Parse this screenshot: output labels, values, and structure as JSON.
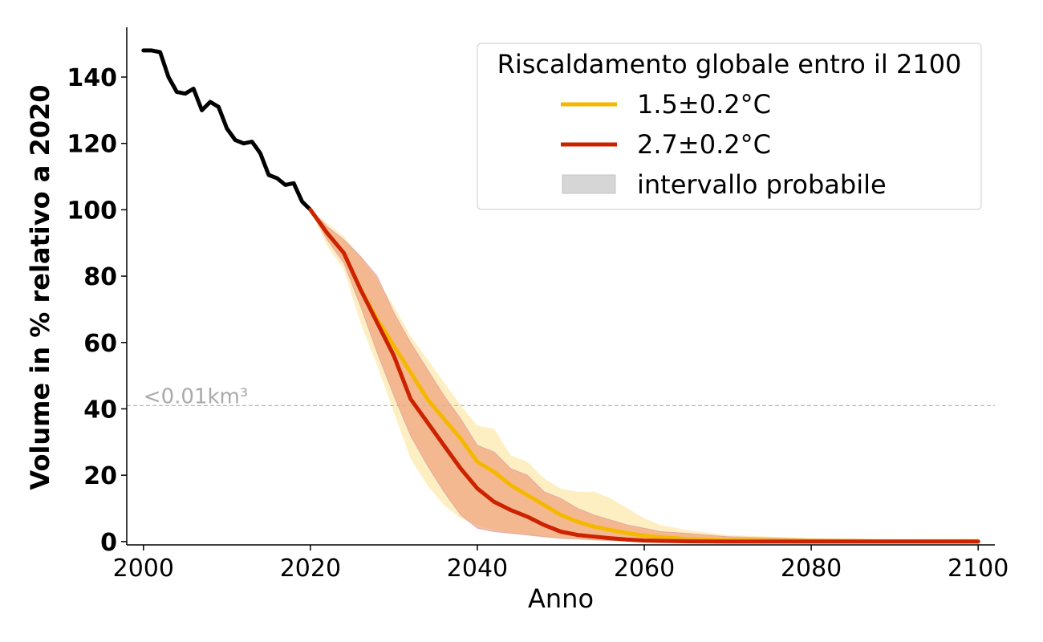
{
  "chart_data": {
    "type": "line",
    "xlabel": "Anno",
    "ylabel": "Volume in % relativo a 2020",
    "xlim": [
      1998,
      2102
    ],
    "ylim": [
      -1,
      155
    ],
    "xticks": [
      2000,
      2020,
      2040,
      2060,
      2080,
      2100
    ],
    "xtick_labels": [
      "2000",
      "2020",
      "2040",
      "2060",
      "2080",
      "2100"
    ],
    "yticks": [
      0,
      20,
      40,
      60,
      80,
      100,
      120,
      140
    ],
    "ytick_labels": [
      "0",
      "20",
      "40",
      "60",
      "80",
      "100",
      "120",
      "140"
    ],
    "grid": false,
    "legend": {
      "title": "Riscaldamento globale entro il 2100",
      "placement": "top-right",
      "entries": [
        "1.5±0.2°C",
        "2.7±0.2°C",
        "intervallo probabile"
      ]
    },
    "reference_line": {
      "y": 41,
      "label": "<0.01km³",
      "color": "#bbbbbb"
    },
    "observed": {
      "color": "#000000",
      "x": [
        2000,
        2001,
        2002,
        2003,
        2004,
        2005,
        2006,
        2007,
        2008,
        2009,
        2010,
        2011,
        2012,
        2013,
        2014,
        2015,
        2016,
        2017,
        2018,
        2019,
        2020
      ],
      "y": [
        148,
        148,
        147.5,
        140,
        135.5,
        135,
        136.5,
        130,
        132.5,
        131,
        124.5,
        121,
        120,
        120.5,
        117,
        110.5,
        109.5,
        107.5,
        108,
        102.5,
        100
      ]
    },
    "series": [
      {
        "name": "1.5±0.2°C",
        "color": "#f5b800",
        "band_color": "#fde49a",
        "x": [
          2020,
          2022,
          2024,
          2026,
          2028,
          2030,
          2032,
          2034,
          2036,
          2038,
          2040,
          2042,
          2044,
          2046,
          2048,
          2050,
          2052,
          2054,
          2056,
          2058,
          2060,
          2062,
          2065,
          2070,
          2080,
          2090,
          2100
        ],
        "y": [
          100,
          93,
          87,
          76,
          67,
          59,
          51,
          43,
          37,
          31,
          24,
          21,
          17,
          14,
          11,
          8,
          6,
          4.5,
          3.5,
          2.5,
          1.8,
          1.3,
          0.8,
          0.4,
          0.2,
          0.1,
          0.1
        ],
        "lower": [
          100,
          89,
          82,
          66,
          53,
          39,
          25,
          17,
          11,
          7,
          5,
          3.5,
          2.5,
          1.8,
          1.2,
          0.8,
          0.5,
          0.3,
          0.2,
          0.1,
          0.1,
          0,
          0,
          0,
          0,
          0,
          0
        ],
        "upper": [
          100,
          96,
          92,
          86,
          79,
          71,
          62,
          55,
          48,
          41,
          35,
          34,
          26,
          24,
          19,
          16,
          15,
          15,
          13,
          10,
          7,
          5,
          3.5,
          2,
          1,
          0.8,
          1
        ]
      },
      {
        "name": "2.7±0.2°C",
        "color": "#cc2200",
        "band_color": "#ee9977",
        "x": [
          2020,
          2022,
          2024,
          2026,
          2028,
          2030,
          2032,
          2034,
          2036,
          2038,
          2040,
          2042,
          2044,
          2046,
          2048,
          2050,
          2052,
          2054,
          2056,
          2058,
          2060,
          2062,
          2065,
          2070,
          2080,
          2090,
          2100
        ],
        "y": [
          100,
          93,
          87,
          76,
          66,
          56,
          43,
          36,
          29,
          22,
          16,
          12,
          9.5,
          7.5,
          5,
          3,
          2,
          1.5,
          1,
          0.6,
          0.3,
          0.2,
          0.1,
          0,
          0,
          0,
          0
        ],
        "lower": [
          100,
          91,
          84,
          71,
          57,
          44,
          32,
          23,
          15,
          8,
          4,
          3,
          2.5,
          2,
          1.5,
          1,
          0.8,
          0.5,
          0.3,
          0.2,
          0.1,
          0,
          0,
          0,
          0,
          0,
          0
        ],
        "upper": [
          100,
          95,
          91,
          86,
          80,
          69,
          60,
          52,
          44,
          37,
          29,
          27,
          22,
          20,
          15,
          13,
          10,
          8,
          6.5,
          5,
          4,
          3,
          2.5,
          1.5,
          0.8,
          0.5,
          0.5
        ]
      }
    ]
  }
}
